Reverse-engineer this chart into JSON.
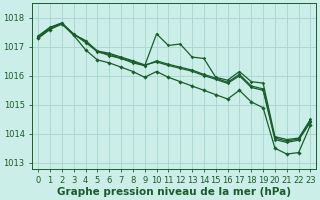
{
  "background_color": "#cceee8",
  "grid_color": "#aad8d0",
  "line_color": "#1a5c2a",
  "xlabel": "Graphe pression niveau de la mer (hPa)",
  "xlabel_fontsize": 7.5,
  "tick_fontsize": 6.0,
  "ylim": [
    1012.8,
    1018.5
  ],
  "xlim": [
    -0.5,
    23.5
  ],
  "yticks": [
    1013,
    1014,
    1015,
    1016,
    1017,
    1018
  ],
  "xticks": [
    0,
    1,
    2,
    3,
    4,
    5,
    6,
    7,
    8,
    9,
    10,
    11,
    12,
    13,
    14,
    15,
    16,
    17,
    18,
    19,
    20,
    21,
    22,
    23
  ],
  "series": [
    [
      1017.3,
      1017.65,
      1017.8,
      1017.45,
      1017.15,
      1016.85,
      1016.7,
      1016.6,
      1016.45,
      1016.35,
      1017.45,
      1017.05,
      1017.1,
      1016.65,
      1016.6,
      1015.95,
      1015.85,
      1016.15,
      1015.8,
      1015.75,
      1013.9,
      1013.8,
      1013.85,
      1014.5
    ],
    [
      1017.35,
      1017.65,
      1017.82,
      1017.42,
      1017.2,
      1016.82,
      1016.75,
      1016.6,
      1016.5,
      1016.35,
      1016.52,
      1016.4,
      1016.3,
      1016.2,
      1016.05,
      1015.92,
      1015.78,
      1016.05,
      1015.65,
      1015.55,
      1013.85,
      1013.75,
      1013.82,
      1014.45
    ],
    [
      1017.38,
      1017.68,
      1017.83,
      1017.44,
      1017.22,
      1016.86,
      1016.78,
      1016.65,
      1016.52,
      1016.38,
      1016.48,
      1016.36,
      1016.26,
      1016.16,
      1016.01,
      1015.88,
      1015.74,
      1016.0,
      1015.6,
      1015.5,
      1013.8,
      1013.7,
      1013.78,
      1014.4
    ],
    [
      1017.3,
      1017.6,
      1017.79,
      1017.4,
      1016.9,
      1016.55,
      1016.45,
      1016.3,
      1016.15,
      1015.95,
      1016.15,
      1015.95,
      1015.8,
      1015.65,
      1015.5,
      1015.35,
      1015.2,
      1015.5,
      1015.1,
      1014.9,
      1013.5,
      1013.3,
      1013.35,
      1014.3
    ]
  ],
  "linestyles": [
    "-",
    "-",
    "-",
    "-"
  ]
}
